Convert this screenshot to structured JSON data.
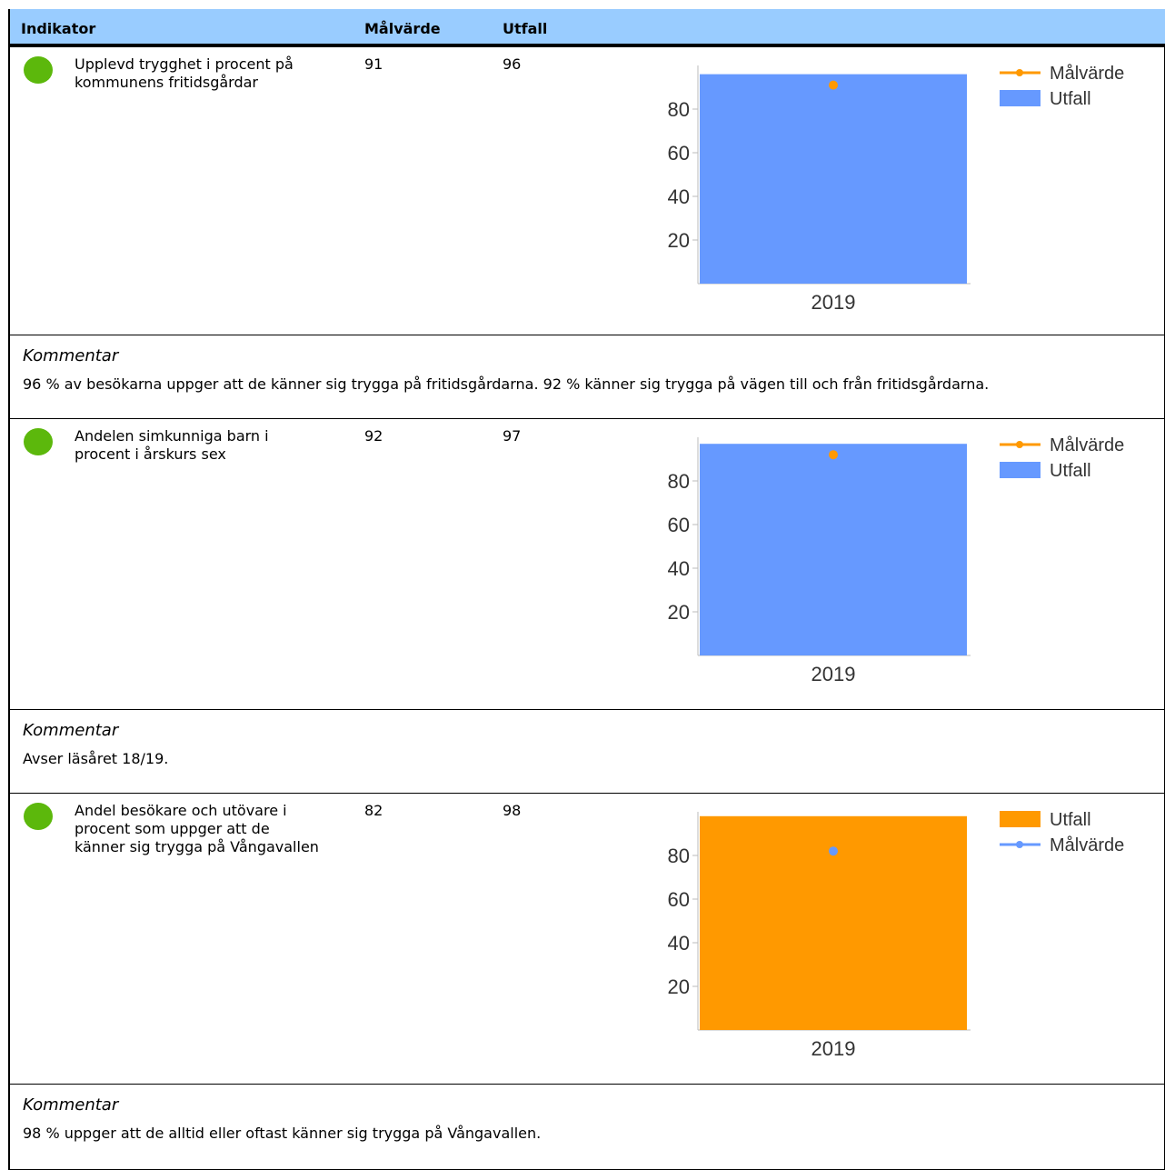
{
  "header": {
    "indikator": "Indikator",
    "malvarde": "Målvärde",
    "utfall": "Utfall"
  },
  "indicators": [
    {
      "name": "Upplevd trygghet i procent på kommunens fritidsgårdar",
      "target": "91",
      "outcome": "96",
      "status_color": "#5cb80c",
      "comment_title": "Kommentar",
      "comment": "96 % av besökarna uppger att de känner sig trygga på fritidsgårdarna. 92 % känner sig trygga på vägen till och från fritidsgårdarna."
    },
    {
      "name": "Andelen simkunniga barn i procent i årskurs sex",
      "target": "92",
      "outcome": "97",
      "status_color": "#5cb80c",
      "comment_title": "Kommentar",
      "comment": "Avser läsåret 18/19."
    },
    {
      "name": "Andel besökare och utövare i procent som uppger att de känner sig trygga på Vångavallen",
      "target": "82",
      "outcome": "98",
      "status_color": "#5cb80c",
      "comment_title": "Kommentar",
      "comment": "98 % uppger att de alltid eller oftast känner sig trygga på Vångavallen."
    }
  ],
  "chart_data": [
    {
      "type": "bar",
      "categories": [
        "2019"
      ],
      "series": [
        {
          "name": "Utfall",
          "type": "bar",
          "values": [
            96
          ],
          "color": "#6699ff"
        },
        {
          "name": "Målvärde",
          "type": "line",
          "values": [
            91
          ],
          "color": "#ff9900"
        }
      ],
      "legend_order": [
        "Målvärde",
        "Utfall"
      ],
      "yticks": [
        "20",
        "40",
        "60",
        "80"
      ],
      "ylim": [
        0,
        100
      ],
      "legend": "right"
    },
    {
      "type": "bar",
      "categories": [
        "2019"
      ],
      "series": [
        {
          "name": "Utfall",
          "type": "bar",
          "values": [
            97
          ],
          "color": "#6699ff"
        },
        {
          "name": "Målvärde",
          "type": "line",
          "values": [
            92
          ],
          "color": "#ff9900"
        }
      ],
      "legend_order": [
        "Målvärde",
        "Utfall"
      ],
      "yticks": [
        "20",
        "40",
        "60",
        "80"
      ],
      "ylim": [
        0,
        100
      ],
      "legend": "right"
    },
    {
      "type": "bar",
      "categories": [
        "2019"
      ],
      "series": [
        {
          "name": "Utfall",
          "type": "bar",
          "values": [
            98
          ],
          "color": "#ff9900"
        },
        {
          "name": "Målvärde",
          "type": "line",
          "values": [
            82
          ],
          "color": "#6699ff"
        }
      ],
      "legend_order": [
        "Utfall",
        "Målvärde"
      ],
      "yticks": [
        "20",
        "40",
        "60",
        "80"
      ],
      "ylim": [
        0,
        100
      ],
      "legend": "right"
    }
  ]
}
